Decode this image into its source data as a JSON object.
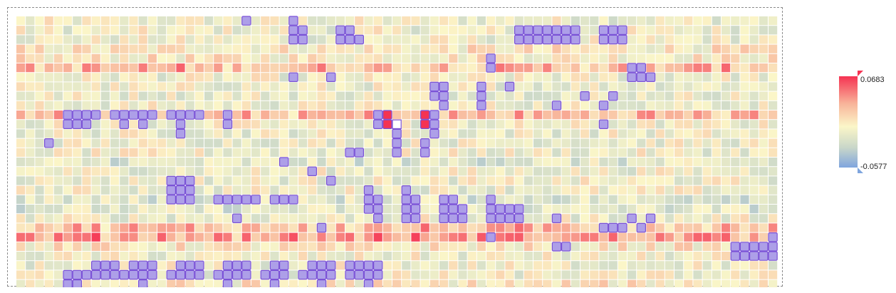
{
  "chart_data": {
    "type": "heatmap",
    "rows": 30,
    "cols": 81,
    "value_range": [
      -0.0577,
      0.0683
    ],
    "colors": {
      "low": "#7fa5de",
      "mid_low": "#c9d7c9",
      "mid": "#fbf6c8",
      "mid_high": "#f8b49a",
      "high": "#f53352",
      "selection_fill": "#ad9fe8",
      "selection_stroke": "#7b52d6",
      "cell_gap": "#ffffff"
    },
    "legend": {
      "max_label": "0.0683",
      "min_label": "-0.0577"
    },
    "hot_rows": [
      5,
      10,
      22,
      23
    ],
    "selected_clusters": [
      [
        [
          1,
          29
        ],
        [
          2,
          29
        ],
        [
          1,
          30
        ],
        [
          2,
          30
        ]
      ],
      [
        [
          1,
          34
        ],
        [
          2,
          34
        ],
        [
          1,
          35
        ],
        [
          2,
          35
        ],
        [
          2,
          36
        ]
      ],
      [
        [
          1,
          53
        ],
        [
          2,
          53
        ],
        [
          1,
          54
        ],
        [
          2,
          54
        ],
        [
          1,
          55
        ],
        [
          2,
          55
        ],
        [
          1,
          56
        ],
        [
          2,
          56
        ]
      ],
      [
        [
          1,
          57
        ],
        [
          2,
          57
        ],
        [
          1,
          58
        ],
        [
          2,
          58
        ],
        [
          1,
          59
        ],
        [
          2,
          59
        ]
      ],
      [
        [
          1,
          62
        ],
        [
          2,
          62
        ],
        [
          1,
          63
        ],
        [
          2,
          63
        ],
        [
          1,
          64
        ],
        [
          2,
          64
        ]
      ],
      [
        [
          5,
          65
        ],
        [
          6,
          65
        ],
        [
          5,
          66
        ],
        [
          6,
          66
        ],
        [
          6,
          67
        ]
      ],
      [
        [
          6,
          29
        ],
        [
          6,
          33
        ],
        [
          7,
          44
        ],
        [
          8,
          44
        ],
        [
          7,
          45
        ],
        [
          8,
          45
        ],
        [
          9,
          45
        ],
        [
          7,
          49
        ],
        [
          8,
          49
        ],
        [
          9,
          49
        ]
      ],
      [
        [
          10,
          5
        ],
        [
          10,
          6
        ],
        [
          10,
          7
        ],
        [
          10,
          8
        ],
        [
          11,
          5
        ],
        [
          11,
          6
        ],
        [
          11,
          7
        ],
        [
          10,
          10
        ],
        [
          10,
          11
        ],
        [
          10,
          12
        ],
        [
          10,
          13
        ],
        [
          10,
          14
        ],
        [
          11,
          11
        ],
        [
          11,
          13
        ]
      ],
      [
        [
          10,
          16
        ],
        [
          10,
          17
        ],
        [
          10,
          18
        ],
        [
          10,
          19
        ],
        [
          11,
          17
        ],
        [
          12,
          17
        ],
        [
          10,
          22
        ],
        [
          11,
          22
        ]
      ],
      [
        [
          10,
          38
        ],
        [
          11,
          38
        ],
        [
          10,
          39
        ],
        [
          11,
          39
        ],
        [
          12,
          40
        ],
        [
          10,
          43
        ],
        [
          11,
          43
        ],
        [
          10,
          44
        ],
        [
          11,
          44
        ],
        [
          12,
          44
        ]
      ],
      [
        [
          12,
          40
        ],
        [
          13,
          40
        ],
        [
          14,
          40
        ],
        [
          13,
          43
        ],
        [
          14,
          43
        ]
      ],
      [
        [
          17,
          16
        ],
        [
          17,
          17
        ],
        [
          17,
          18
        ],
        [
          18,
          16
        ],
        [
          18,
          17
        ],
        [
          18,
          18
        ],
        [
          19,
          16
        ],
        [
          19,
          17
        ],
        [
          19,
          18
        ]
      ],
      [
        [
          19,
          21
        ],
        [
          19,
          22
        ],
        [
          19,
          23
        ],
        [
          19,
          24
        ],
        [
          19,
          25
        ],
        [
          19,
          27
        ],
        [
          19,
          28
        ],
        [
          19,
          29
        ]
      ],
      [
        [
          18,
          37
        ],
        [
          19,
          37
        ],
        [
          20,
          37
        ],
        [
          19,
          38
        ],
        [
          20,
          38
        ],
        [
          21,
          38
        ],
        [
          18,
          41
        ],
        [
          19,
          41
        ],
        [
          20,
          41
        ],
        [
          21,
          41
        ],
        [
          19,
          42
        ],
        [
          20,
          42
        ],
        [
          21,
          42
        ]
      ],
      [
        [
          19,
          45
        ],
        [
          20,
          45
        ],
        [
          21,
          45
        ],
        [
          19,
          46
        ],
        [
          20,
          46
        ],
        [
          21,
          46
        ],
        [
          20,
          47
        ],
        [
          21,
          47
        ]
      ],
      [
        [
          19,
          50
        ],
        [
          20,
          50
        ],
        [
          21,
          50
        ],
        [
          20,
          51
        ],
        [
          21,
          51
        ],
        [
          20,
          52
        ],
        [
          21,
          52
        ],
        [
          20,
          53
        ],
        [
          21,
          53
        ]
      ],
      [
        [
          24,
          76
        ],
        [
          24,
          77
        ],
        [
          24,
          78
        ],
        [
          24,
          79
        ],
        [
          25,
          76
        ],
        [
          25,
          77
        ],
        [
          25,
          78
        ],
        [
          25,
          79
        ],
        [
          25,
          80
        ],
        [
          23,
          80
        ],
        [
          24,
          80
        ]
      ],
      [
        [
          27,
          5
        ],
        [
          27,
          6
        ],
        [
          27,
          7
        ],
        [
          27,
          8
        ],
        [
          27,
          9
        ],
        [
          27,
          10
        ],
        [
          27,
          11
        ],
        [
          26,
          8
        ],
        [
          26,
          9
        ],
        [
          26,
          10
        ],
        [
          28,
          5
        ],
        [
          28,
          6
        ]
      ],
      [
        [
          27,
          12
        ],
        [
          27,
          13
        ],
        [
          27,
          14
        ],
        [
          26,
          12
        ],
        [
          26,
          13
        ],
        [
          26,
          14
        ],
        [
          28,
          13
        ]
      ],
      [
        [
          26,
          17
        ],
        [
          26,
          18
        ],
        [
          26,
          19
        ],
        [
          27,
          16
        ],
        [
          27,
          17
        ],
        [
          27,
          18
        ],
        [
          27,
          19
        ]
      ],
      [
        [
          26,
          22
        ],
        [
          26,
          23
        ],
        [
          26,
          24
        ],
        [
          27,
          21
        ],
        [
          27,
          22
        ],
        [
          27,
          23
        ],
        [
          27,
          24
        ],
        [
          28,
          22
        ]
      ],
      [
        [
          26,
          27
        ],
        [
          26,
          28
        ],
        [
          27,
          26
        ],
        [
          27,
          27
        ],
        [
          27,
          28
        ],
        [
          28,
          27
        ]
      ],
      [
        [
          26,
          31
        ],
        [
          26,
          32
        ],
        [
          26,
          33
        ],
        [
          27,
          30
        ],
        [
          27,
          31
        ],
        [
          27,
          32
        ],
        [
          27,
          33
        ],
        [
          28,
          32
        ]
      ],
      [
        [
          26,
          35
        ],
        [
          26,
          36
        ],
        [
          26,
          37
        ],
        [
          26,
          38
        ],
        [
          27,
          35
        ],
        [
          27,
          36
        ],
        [
          27,
          37
        ],
        [
          27,
          38
        ],
        [
          28,
          37
        ]
      ]
    ],
    "isolated_selected": [
      [
        0,
        24
      ],
      [
        0,
        29
      ],
      [
        6,
        29
      ],
      [
        4,
        50
      ],
      [
        5,
        50
      ],
      [
        7,
        52
      ],
      [
        8,
        60
      ],
      [
        8,
        63
      ],
      [
        9,
        57
      ],
      [
        9,
        62
      ],
      [
        11,
        62
      ],
      [
        13,
        3
      ],
      [
        15,
        28
      ],
      [
        16,
        31
      ],
      [
        22,
        32
      ],
      [
        21,
        23
      ],
      [
        17,
        33
      ],
      [
        14,
        35
      ],
      [
        14,
        36
      ],
      [
        21,
        57
      ],
      [
        22,
        62
      ],
      [
        22,
        63
      ],
      [
        22,
        64
      ],
      [
        21,
        65
      ],
      [
        22,
        66
      ],
      [
        21,
        67
      ],
      [
        23,
        50
      ],
      [
        24,
        57
      ],
      [
        24,
        58
      ]
    ],
    "peak_cells": [
      [
        10,
        39
      ],
      [
        10,
        43
      ],
      [
        11,
        39
      ],
      [
        11,
        43
      ]
    ],
    "white_cell": [
      11,
      40
    ]
  }
}
